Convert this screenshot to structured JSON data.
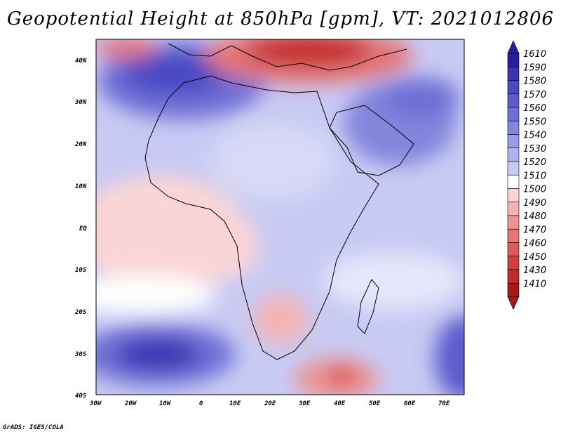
{
  "title": "Geopotential Height at 850hPa [gpm], VT: 2021012806",
  "credit": "GrADS: IGES/COLA",
  "map": {
    "lat_labels": [
      "40N",
      "30N",
      "20N",
      "10N",
      "EQ",
      "10S",
      "20S",
      "30S",
      "40S"
    ],
    "lon_labels": [
      "30W",
      "20W",
      "10W",
      "0",
      "10E",
      "20E",
      "30E",
      "40E",
      "50E",
      "60E",
      "70E"
    ]
  },
  "colorbar": {
    "labels": [
      "1610",
      "1590",
      "1580",
      "1570",
      "1560",
      "1550",
      "1540",
      "1530",
      "1520",
      "1510",
      "1500",
      "1490",
      "1480",
      "1470",
      "1460",
      "1450",
      "1430",
      "1410"
    ],
    "colors": [
      "#2a1d9b",
      "#3a33b3",
      "#4a48c2",
      "#5c5ccc",
      "#6e70d6",
      "#8286dc",
      "#989ce4",
      "#b0b4ee",
      "#c8caf4",
      "#ffffff",
      "#fbd5d5",
      "#f4b4b4",
      "#ec9494",
      "#e47676",
      "#dc5a5a",
      "#d23f3f",
      "#c32a2a",
      "#a81818"
    ]
  }
}
